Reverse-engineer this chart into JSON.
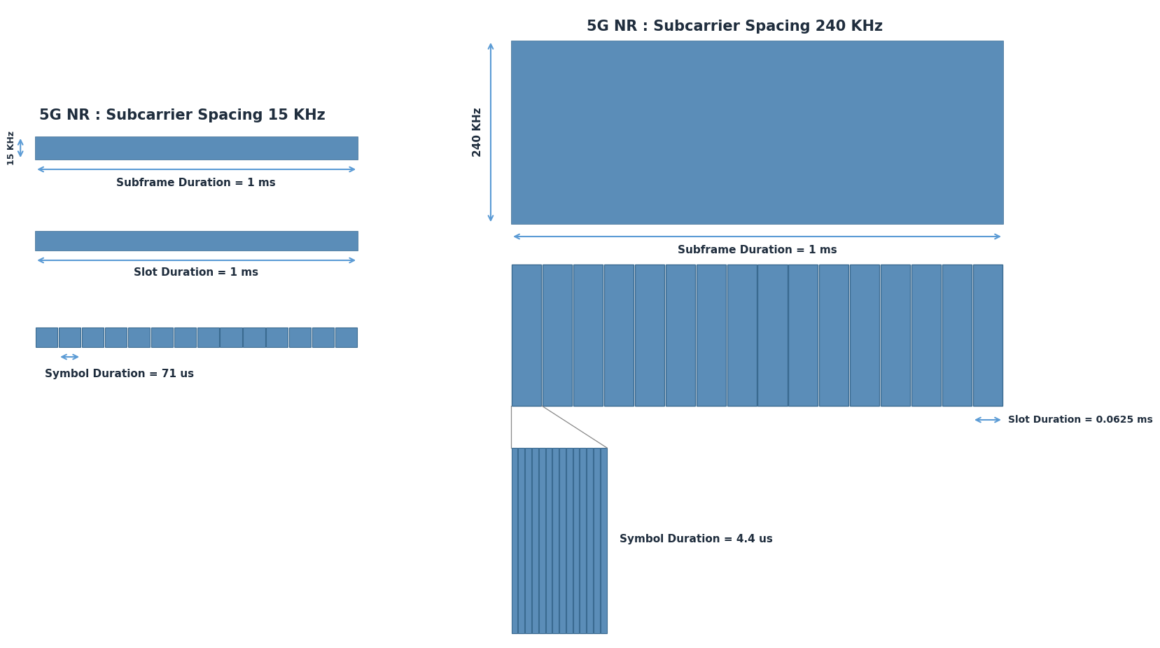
{
  "bg_color": "#ffffff",
  "rect_color": "#5b8db8",
  "rect_edge_color": "#3a6a90",
  "arrow_color": "#5b9bd5",
  "text_color": "#1f2d3d",
  "title_15": "5G NR : Subcarrier Spacing 15 KHz",
  "title_240": "5G NR : Subcarrier Spacing 240 KHz",
  "label_subframe_15": "Subframe Duration = 1 ms",
  "label_slot_15": "Slot Duration = 1 ms",
  "label_symbol_15": "Symbol Duration = 71 us",
  "label_15khz": "15 KHz",
  "label_240khz": "240 KHz",
  "label_subframe_240": "Subframe Duration = 1 ms",
  "label_slot_240": "Slot Duration = 0.0625 ms",
  "label_symbol_240": "Symbol Duration = 4.4 us",
  "num_symbols_15": 14,
  "num_slots_240": 16,
  "num_symbols_240": 14
}
